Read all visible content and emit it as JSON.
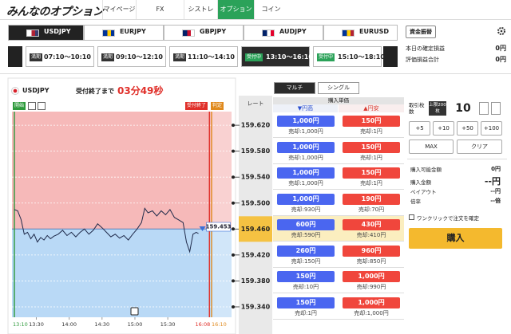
{
  "header": {
    "logo": "みんなのオプション",
    "tabs": [
      "マイページ",
      "FX",
      "シストレ",
      "オプション",
      "コイン"
    ],
    "active_tab": 3
  },
  "currency_tabs": {
    "items": [
      "USDJPY",
      "EURJPY",
      "GBPJPY",
      "AUDJPY",
      "EURUSD"
    ],
    "active": 0
  },
  "transfer_button": "資金振替",
  "sessions": {
    "items": [
      {
        "status": "満期",
        "time": "07:10〜10:10"
      },
      {
        "status": "満期",
        "time": "09:10〜12:10"
      },
      {
        "status": "満期",
        "time": "11:10〜14:10"
      },
      {
        "status": "受付中",
        "time": "13:10〜16:10"
      },
      {
        "status": "受付中",
        "time": "15:10〜18:10"
      }
    ],
    "active": 3
  },
  "account": {
    "realized_label": "本日の確定損益",
    "realized": "0円",
    "unrealized_label": "評価損益合計",
    "unrealized": "0円"
  },
  "chart": {
    "type": "line",
    "symbol": "USDJPY",
    "countdown_label": "受付終了まで",
    "countdown": "03分49秒",
    "badges": {
      "start": "開始",
      "close": "受付終了",
      "judge": "判定"
    },
    "rate_header": "レート",
    "x": [
      0,
      3,
      6,
      9,
      12,
      15,
      18,
      21,
      24,
      27,
      30,
      33,
      36,
      40,
      44,
      48,
      52,
      56,
      60,
      64,
      68,
      72,
      76,
      80,
      84,
      88,
      92,
      96,
      100,
      104,
      108,
      112,
      116,
      119,
      122,
      126,
      130,
      134,
      138,
      142,
      146,
      150,
      154,
      157,
      160,
      163,
      166,
      168
    ],
    "series": [
      {
        "color": "#1f2a4a",
        "values": [
          159.49,
          159.488,
          159.475,
          159.452,
          159.455,
          159.445,
          159.452,
          159.44,
          159.447,
          159.443,
          159.45,
          159.445,
          159.449,
          159.452,
          159.458,
          159.45,
          159.455,
          159.448,
          159.455,
          159.46,
          159.452,
          159.458,
          159.468,
          159.462,
          159.455,
          159.448,
          159.452,
          159.446,
          159.45,
          159.443,
          159.452,
          159.46,
          159.47,
          159.492,
          159.485,
          159.488,
          159.48,
          159.488,
          159.482,
          159.49,
          159.478,
          159.474,
          159.47,
          159.44,
          159.425,
          159.452,
          159.455,
          159.453
        ]
      }
    ],
    "current_price": 159.453,
    "xlim": [
      -2.2,
      198.2
    ],
    "xticks": [
      {
        "value": 0,
        "label": "13:10"
      },
      {
        "value": 20,
        "label": "13:30"
      },
      {
        "value": 50,
        "label": "14:00"
      },
      {
        "value": 80,
        "label": "14:30"
      },
      {
        "value": 110,
        "label": "15:00"
      },
      {
        "value": 140,
        "label": "15:30"
      },
      {
        "value": 178,
        "label": "16:08"
      },
      {
        "value": 180,
        "label": "16:10"
      }
    ],
    "ylim": [
      159.324,
      159.641
    ],
    "yticks": [
      {
        "value": 159.62,
        "label": "159.620"
      },
      {
        "value": 159.58,
        "label": "159.580"
      },
      {
        "value": 159.54,
        "label": "159.540"
      },
      {
        "value": 159.5,
        "label": "159.500"
      },
      {
        "value": 159.46,
        "label": "159.460"
      },
      {
        "value": 159.42,
        "label": "159.420"
      },
      {
        "value": 159.38,
        "label": "159.380"
      },
      {
        "value": 159.34,
        "label": "159.340"
      }
    ],
    "upper_color": "#f6b9b9",
    "lower_color": "#b9d9f6"
  },
  "ladder": {
    "tabs": [
      "マルチ",
      "シングル"
    ],
    "active_tab": 0,
    "price_header": "購入単価",
    "high_header": "▼円高",
    "low_header": "▲円安",
    "rows": [
      {
        "high": "1,000円",
        "high_sell": "売却:1,000円",
        "low": "150円",
        "low_sell": "売却:1円"
      },
      {
        "high": "1,000円",
        "high_sell": "売却:1,000円",
        "low": "150円",
        "low_sell": "売却:1円"
      },
      {
        "high": "1,000円",
        "high_sell": "売却:1,000円",
        "low": "150円",
        "low_sell": "売却:1円"
      },
      {
        "high": "1,000円",
        "high_sell": "売却:930円",
        "low": "190円",
        "low_sell": "売却:70円"
      },
      {
        "high": "600円",
        "high_sell": "売却:590円",
        "low": "430円",
        "low_sell": "売却:410円"
      },
      {
        "high": "260円",
        "high_sell": "売却:150円",
        "low": "960円",
        "low_sell": "売却:850円"
      },
      {
        "high": "150円",
        "high_sell": "売却:10円",
        "low": "1,000円",
        "low_sell": "売却:990円"
      },
      {
        "high": "150円",
        "high_sell": "売却:1円",
        "low": "1,000円",
        "low_sell": "売却:1,000円"
      }
    ]
  },
  "order": {
    "quantity_label": "取引枚数",
    "limit_badge": "上限200枚",
    "quantity": 10,
    "steps": [
      "+5",
      "+10",
      "+50",
      "+100"
    ],
    "max": "MAX",
    "clear": "クリア",
    "summary": [
      {
        "label": "購入可能金額",
        "value": "0円"
      },
      {
        "label": "購入金額",
        "value": "--円"
      },
      {
        "label": "ペイアウト",
        "value": "--円"
      },
      {
        "label": "倍率",
        "value": "--倍"
      }
    ],
    "one_click": "ワンクリックで注文を確定",
    "buy": "購入"
  }
}
